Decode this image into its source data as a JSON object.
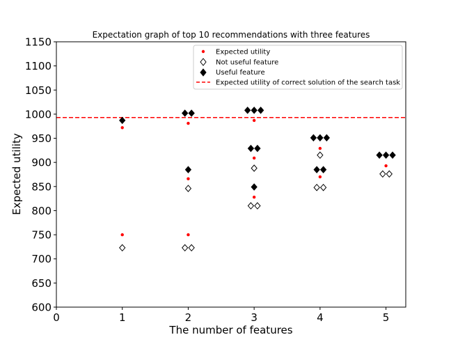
{
  "chart_data": {
    "type": "scatter",
    "title": "Expectation graph of top 10 recommendations with three features",
    "xlabel": "The number of features",
    "ylabel": "Expected utility",
    "xlim": [
      0,
      5.3
    ],
    "ylim": [
      600,
      1150
    ],
    "xticks": [
      0,
      1,
      2,
      3,
      4,
      5
    ],
    "yticks": [
      600,
      650,
      700,
      750,
      800,
      850,
      900,
      950,
      1000,
      1050,
      1100,
      1150
    ],
    "grid": false,
    "legend_position": "top-right",
    "reference_line": {
      "name": "Expected utility of correct solution of the search task",
      "y": 993,
      "color": "#ff0000",
      "style": "dashed"
    },
    "series": [
      {
        "name": "Expected utility",
        "marker": "dot",
        "color": "#ff0000",
        "points": [
          {
            "x": 1,
            "y": 972
          },
          {
            "x": 1,
            "y": 750
          },
          {
            "x": 2,
            "y": 981
          },
          {
            "x": 2,
            "y": 866
          },
          {
            "x": 2,
            "y": 750
          },
          {
            "x": 3,
            "y": 987
          },
          {
            "x": 3,
            "y": 909
          },
          {
            "x": 3,
            "y": 828
          },
          {
            "x": 4,
            "y": 929
          },
          {
            "x": 4,
            "y": 870
          },
          {
            "x": 5,
            "y": 893
          }
        ]
      },
      {
        "name": "Not useful feature",
        "marker": "diamond-open",
        "color": "#000000",
        "points": [
          {
            "x": 1,
            "y": 723
          },
          {
            "x": 2,
            "y": 846
          },
          {
            "x": 1.95,
            "y": 723
          },
          {
            "x": 2.05,
            "y": 723
          },
          {
            "x": 3,
            "y": 888
          },
          {
            "x": 2.95,
            "y": 810
          },
          {
            "x": 3.05,
            "y": 810
          },
          {
            "x": 4,
            "y": 915
          },
          {
            "x": 3.95,
            "y": 848
          },
          {
            "x": 4.05,
            "y": 848
          },
          {
            "x": 4.95,
            "y": 876
          },
          {
            "x": 5.05,
            "y": 876
          }
        ]
      },
      {
        "name": "Useful feature",
        "marker": "diamond-filled",
        "color": "#000000",
        "points": [
          {
            "x": 1,
            "y": 987
          },
          {
            "x": 1.95,
            "y": 1002
          },
          {
            "x": 2.05,
            "y": 1002
          },
          {
            "x": 2,
            "y": 885
          },
          {
            "x": 2.9,
            "y": 1008
          },
          {
            "x": 3,
            "y": 1008
          },
          {
            "x": 3.1,
            "y": 1008
          },
          {
            "x": 2.95,
            "y": 929
          },
          {
            "x": 3.05,
            "y": 929
          },
          {
            "x": 3,
            "y": 849
          },
          {
            "x": 3.9,
            "y": 951
          },
          {
            "x": 4,
            "y": 951
          },
          {
            "x": 4.1,
            "y": 951
          },
          {
            "x": 3.95,
            "y": 885
          },
          {
            "x": 4.05,
            "y": 885
          },
          {
            "x": 4.9,
            "y": 915
          },
          {
            "x": 5,
            "y": 915
          },
          {
            "x": 5.1,
            "y": 915
          }
        ]
      }
    ]
  }
}
